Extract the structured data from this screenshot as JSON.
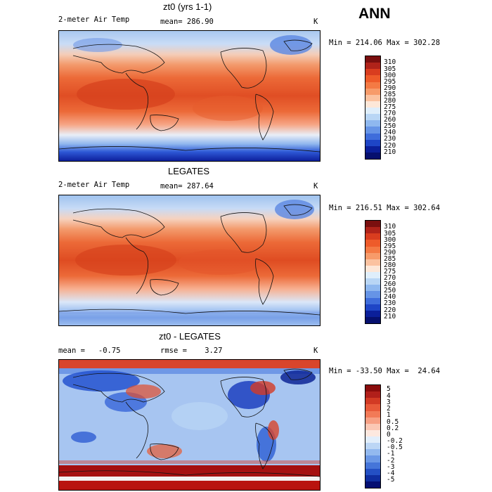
{
  "season": "ANN",
  "panels": [
    {
      "title": "zt0 (yrs 1-1)",
      "left": "2-meter Air Temp",
      "center": "mean= 286.90",
      "units": "K",
      "minmax": "Min = 214.06 Max = 302.28",
      "colorbar": {
        "labels": [
          "310",
          "305",
          "300",
          "295",
          "290",
          "285",
          "280",
          "275",
          "270",
          "260",
          "250",
          "240",
          "230",
          "220",
          "210"
        ],
        "colors": [
          "#7a0f0f",
          "#b0231a",
          "#d93d1f",
          "#ee5b2a",
          "#f47a44",
          "#f79b6a",
          "#fbc2a0",
          "#fde7d8",
          "#dfeefb",
          "#b9d6f5",
          "#8fb8ef",
          "#6694e6",
          "#3f6ddb",
          "#1e45c6",
          "#0b1f9a",
          "#06106e"
        ]
      }
    },
    {
      "title": "LEGATES",
      "left": "2-meter Air Temp",
      "center": "mean= 287.64",
      "units": "K",
      "minmax": "Min = 216.51 Max = 302.64",
      "colorbar": {
        "labels": [
          "310",
          "305",
          "300",
          "295",
          "290",
          "285",
          "280",
          "275",
          "270",
          "260",
          "250",
          "240",
          "230",
          "220",
          "210"
        ],
        "colors": [
          "#7a0f0f",
          "#b0231a",
          "#d93d1f",
          "#ee5b2a",
          "#f47a44",
          "#f79b6a",
          "#fbc2a0",
          "#fde7d8",
          "#dfeefb",
          "#b9d6f5",
          "#8fb8ef",
          "#6694e6",
          "#3f6ddb",
          "#1e45c6",
          "#0b1f9a",
          "#06106e"
        ]
      }
    },
    {
      "title": "zt0 - LEGATES",
      "left": "mean =   -0.75",
      "center": "rmse =    3.27",
      "units": "K",
      "minmax": "Min = -33.50 Max =  24.64",
      "colorbar": {
        "labels": [
          "5",
          "4",
          "3",
          "2",
          "1",
          "0.5",
          "0.2",
          "0",
          "-0.2",
          "-0.5",
          "-1",
          "-2",
          "-3",
          "-4",
          "-5"
        ],
        "colors": [
          "#8a0c0c",
          "#b11f1a",
          "#d23a24",
          "#e85a3a",
          "#f27a57",
          "#f7a084",
          "#fbc8b5",
          "#fde8df",
          "#e2eefb",
          "#bcd6f5",
          "#93b9ef",
          "#6b98e6",
          "#4575d9",
          "#2450c4",
          "#0f2ea0",
          "#050f72"
        ]
      }
    }
  ]
}
